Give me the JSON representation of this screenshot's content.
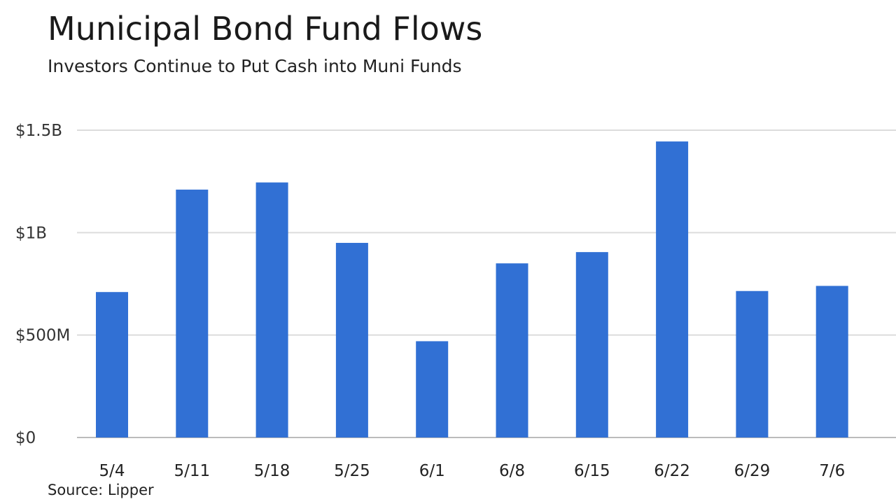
{
  "title": "Municipal Bond Fund Flows",
  "subtitle": "Investors Continue to Put Cash into Muni Funds",
  "source": "Source: Lipper",
  "colors": {
    "bar": "#3170d4",
    "grid": "#dcdcdc",
    "axis": "#bbbbbb"
  },
  "chart_data": {
    "type": "bar",
    "title": "Municipal Bond Fund Flows",
    "subtitle": "Investors Continue to Put Cash into Muni Funds",
    "categories": [
      "5/4",
      "5/11",
      "5/18",
      "5/25",
      "6/1",
      "6/8",
      "6/15",
      "6/22",
      "6/29",
      "7/6"
    ],
    "values": [
      710,
      1210,
      1245,
      950,
      470,
      850,
      905,
      1445,
      715,
      740
    ],
    "units": "millions USD",
    "ylim": [
      0,
      1500
    ],
    "yticks": [
      {
        "value": 0,
        "label": "$0"
      },
      {
        "value": 500,
        "label": "$500M"
      },
      {
        "value": 1000,
        "label": "$1B"
      },
      {
        "value": 1500,
        "label": "$1.5B"
      }
    ],
    "grid": true,
    "legend": "none"
  }
}
